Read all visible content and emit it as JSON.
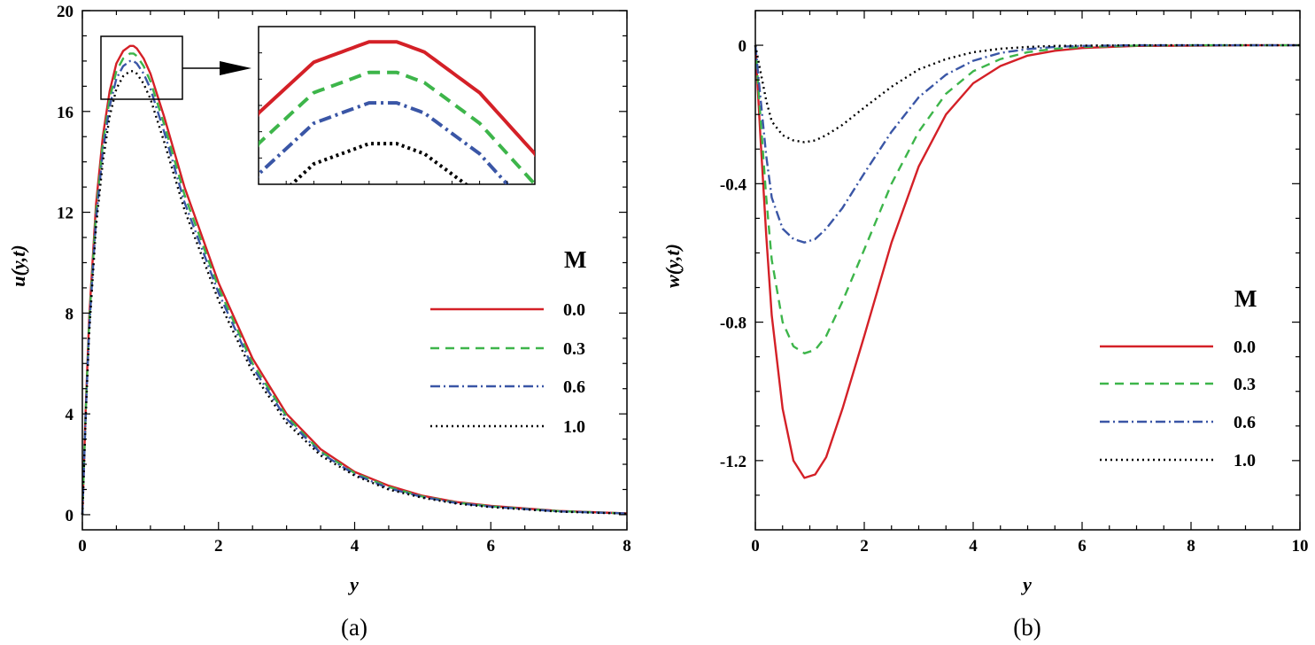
{
  "chart_data": [
    {
      "type": "line",
      "panel_label": "(a)",
      "xlabel": "y",
      "ylabel": "u(y,t)",
      "xlim": [
        0,
        8
      ],
      "ylim": [
        -0.6,
        20
      ],
      "xticks": [
        "0",
        "2",
        "4",
        "6",
        "8"
      ],
      "yticks": [
        "0",
        "4",
        "8",
        "12",
        "16",
        "20"
      ],
      "legend_title": "M",
      "legend_position": "right",
      "inset": "zoom of the peak region near y = 0.75",
      "series": [
        {
          "name": "0.0",
          "color": "#d42027",
          "style": "solid",
          "x": [
            0,
            0.05,
            0.1,
            0.2,
            0.3,
            0.4,
            0.5,
            0.6,
            0.7,
            0.75,
            0.8,
            0.9,
            1.0,
            1.2,
            1.5,
            2.0,
            2.5,
            3.0,
            3.5,
            4.0,
            4.5,
            5.0,
            5.5,
            6.0,
            7.0,
            8.0
          ],
          "y": [
            0,
            4.2,
            7.8,
            12.3,
            15.0,
            16.8,
            17.9,
            18.4,
            18.6,
            18.6,
            18.5,
            18.1,
            17.5,
            15.8,
            13.0,
            9.2,
            6.2,
            4.0,
            2.6,
            1.7,
            1.15,
            0.75,
            0.5,
            0.35,
            0.15,
            0.05
          ]
        },
        {
          "name": "0.3",
          "color": "#3db54a",
          "style": "dashed",
          "x": [
            0,
            0.05,
            0.1,
            0.2,
            0.3,
            0.4,
            0.5,
            0.6,
            0.7,
            0.75,
            0.8,
            0.9,
            1.0,
            1.2,
            1.5,
            2.0,
            2.5,
            3.0,
            3.5,
            4.0,
            4.5,
            5.0,
            5.5,
            6.0,
            7.0,
            8.0
          ],
          "y": [
            0,
            4.1,
            7.6,
            12.0,
            14.7,
            16.5,
            17.6,
            18.1,
            18.3,
            18.3,
            18.2,
            17.8,
            17.2,
            15.5,
            12.7,
            9.0,
            6.0,
            3.9,
            2.5,
            1.65,
            1.1,
            0.72,
            0.48,
            0.33,
            0.14,
            0.05
          ]
        },
        {
          "name": "0.6",
          "color": "#3a56a6",
          "style": "dashdot",
          "x": [
            0,
            0.05,
            0.1,
            0.2,
            0.3,
            0.4,
            0.5,
            0.6,
            0.7,
            0.75,
            0.8,
            0.9,
            1.0,
            1.2,
            1.5,
            2.0,
            2.5,
            3.0,
            3.5,
            4.0,
            4.5,
            5.0,
            5.5,
            6.0,
            7.0,
            8.0
          ],
          "y": [
            0,
            4.0,
            7.4,
            11.7,
            14.4,
            16.2,
            17.3,
            17.8,
            18.0,
            18.0,
            17.9,
            17.5,
            16.9,
            15.2,
            12.4,
            8.8,
            5.85,
            3.8,
            2.45,
            1.6,
            1.05,
            0.7,
            0.46,
            0.32,
            0.13,
            0.05
          ]
        },
        {
          "name": "1.0",
          "color": "#000000",
          "style": "dotted",
          "x": [
            0,
            0.05,
            0.1,
            0.2,
            0.3,
            0.4,
            0.5,
            0.6,
            0.7,
            0.75,
            0.8,
            0.9,
            1.0,
            1.2,
            1.5,
            2.0,
            2.5,
            3.0,
            3.5,
            4.0,
            4.5,
            5.0,
            5.5,
            6.0,
            7.0,
            8.0
          ],
          "y": [
            0,
            3.9,
            7.2,
            11.4,
            14.0,
            15.8,
            16.9,
            17.4,
            17.6,
            17.6,
            17.5,
            17.1,
            16.5,
            14.8,
            12.1,
            8.5,
            5.65,
            3.65,
            2.35,
            1.55,
            1.0,
            0.67,
            0.44,
            0.3,
            0.12,
            0.04
          ]
        }
      ]
    },
    {
      "type": "line",
      "panel_label": "(b)",
      "xlabel": "y",
      "ylabel": "w(y,t)",
      "xlim": [
        0,
        10
      ],
      "ylim": [
        -1.4,
        0.1
      ],
      "xticks": [
        "0",
        "2",
        "4",
        "6",
        "8",
        "10"
      ],
      "yticks": [
        "0",
        "-0.4",
        "-0.8",
        "-1.2"
      ],
      "legend_title": "M",
      "legend_position": "right",
      "series": [
        {
          "name": "0.0",
          "color": "#d42027",
          "style": "solid",
          "x": [
            0,
            0.1,
            0.2,
            0.3,
            0.5,
            0.7,
            0.9,
            1.1,
            1.3,
            1.6,
            2.0,
            2.5,
            3.0,
            3.5,
            4.0,
            4.5,
            5.0,
            5.5,
            6.0,
            7.0,
            8.0,
            9.0,
            10.0
          ],
          "y": [
            0,
            -0.28,
            -0.55,
            -0.78,
            -1.05,
            -1.2,
            -1.25,
            -1.24,
            -1.19,
            -1.05,
            -0.84,
            -0.57,
            -0.35,
            -0.2,
            -0.11,
            -0.06,
            -0.03,
            -0.016,
            -0.008,
            -0.002,
            -0.001,
            0,
            0
          ]
        },
        {
          "name": "0.3",
          "color": "#3db54a",
          "style": "dashed",
          "x": [
            0,
            0.1,
            0.2,
            0.3,
            0.5,
            0.7,
            0.9,
            1.1,
            1.3,
            1.6,
            2.0,
            2.5,
            3.0,
            3.5,
            4.0,
            4.5,
            5.0,
            5.5,
            6.0,
            7.0,
            8.0,
            9.0,
            10.0
          ],
          "y": [
            0,
            -0.22,
            -0.44,
            -0.62,
            -0.8,
            -0.87,
            -0.89,
            -0.88,
            -0.84,
            -0.74,
            -0.59,
            -0.4,
            -0.25,
            -0.14,
            -0.075,
            -0.04,
            -0.02,
            -0.01,
            -0.005,
            -0.001,
            0,
            0,
            0
          ]
        },
        {
          "name": "0.6",
          "color": "#3a56a6",
          "style": "dashdot",
          "x": [
            0,
            0.1,
            0.2,
            0.3,
            0.5,
            0.7,
            0.9,
            1.1,
            1.3,
            1.6,
            2.0,
            2.5,
            3.0,
            3.5,
            4.0,
            4.5,
            5.0,
            5.5,
            6.0,
            7.0,
            8.0,
            9.0,
            10.0
          ],
          "y": [
            0,
            -0.16,
            -0.32,
            -0.44,
            -0.53,
            -0.56,
            -0.57,
            -0.56,
            -0.53,
            -0.47,
            -0.37,
            -0.25,
            -0.15,
            -0.085,
            -0.045,
            -0.022,
            -0.011,
            -0.005,
            -0.002,
            0,
            0,
            0,
            0
          ]
        },
        {
          "name": "1.0",
          "color": "#000000",
          "style": "dotted",
          "x": [
            0,
            0.1,
            0.2,
            0.3,
            0.5,
            0.7,
            0.9,
            1.1,
            1.3,
            1.6,
            2.0,
            2.5,
            3.0,
            3.5,
            4.0,
            4.5,
            5.0,
            5.5,
            6.0,
            7.0,
            8.0,
            9.0,
            10.0
          ],
          "y": [
            0,
            -0.08,
            -0.16,
            -0.22,
            -0.26,
            -0.275,
            -0.28,
            -0.275,
            -0.26,
            -0.23,
            -0.18,
            -0.12,
            -0.07,
            -0.04,
            -0.02,
            -0.01,
            -0.005,
            -0.002,
            -0.001,
            0,
            0,
            0,
            0
          ]
        }
      ]
    }
  ]
}
